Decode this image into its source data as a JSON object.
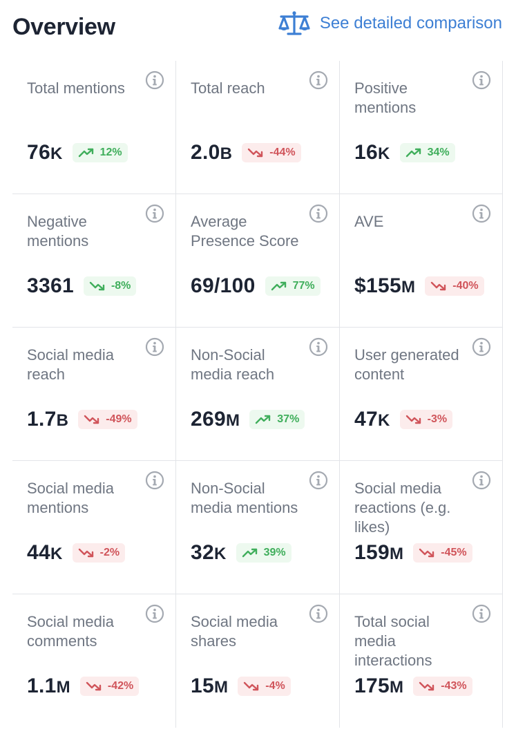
{
  "header": {
    "title": "Overview",
    "compare_link": "See detailed comparison",
    "compare_icon": "balance-scale-icon"
  },
  "colors": {
    "link": "#3d7fd4",
    "positive": "#3fae5b",
    "negative": "#d0545a"
  },
  "metrics": [
    {
      "label": "Total mentions",
      "value": "76",
      "unit": "K",
      "change": "12%",
      "trend": "up"
    },
    {
      "label": "Total reach",
      "value": "2.0",
      "unit": "B",
      "change": "-44%",
      "trend": "down"
    },
    {
      "label": "Positive mentions",
      "value": "16",
      "unit": "K",
      "change": "34%",
      "trend": "up"
    },
    {
      "label": "Negative mentions",
      "value": "3361",
      "unit": "",
      "change": "-8%",
      "trend": "down-good"
    },
    {
      "label": "Average Presence Score",
      "value": "69/100",
      "unit": "",
      "change": "77%",
      "trend": "up"
    },
    {
      "label": "AVE",
      "value": "$155",
      "unit": "M",
      "change": "-40%",
      "trend": "down"
    },
    {
      "label": "Social media reach",
      "value": "1.7",
      "unit": "B",
      "change": "-49%",
      "trend": "down"
    },
    {
      "label": "Non-Social media reach",
      "value": "269",
      "unit": "M",
      "change": "37%",
      "trend": "up"
    },
    {
      "label": "User generated content",
      "value": "47",
      "unit": "K",
      "change": "-3%",
      "trend": "down"
    },
    {
      "label": "Social media mentions",
      "value": "44",
      "unit": "K",
      "change": "-2%",
      "trend": "down"
    },
    {
      "label": "Non-Social media mentions",
      "value": "32",
      "unit": "K",
      "change": "39%",
      "trend": "up"
    },
    {
      "label": "Social media reactions (e.g. likes)",
      "value": "159",
      "unit": "M",
      "change": "-45%",
      "trend": "down"
    },
    {
      "label": "Social media comments",
      "value": "1.1",
      "unit": "M",
      "change": "-42%",
      "trend": "down"
    },
    {
      "label": "Social media shares",
      "value": "15",
      "unit": "M",
      "change": "-4%",
      "trend": "down"
    },
    {
      "label": "Total social media interactions",
      "value": "175",
      "unit": "M",
      "change": "-43%",
      "trend": "down"
    }
  ]
}
